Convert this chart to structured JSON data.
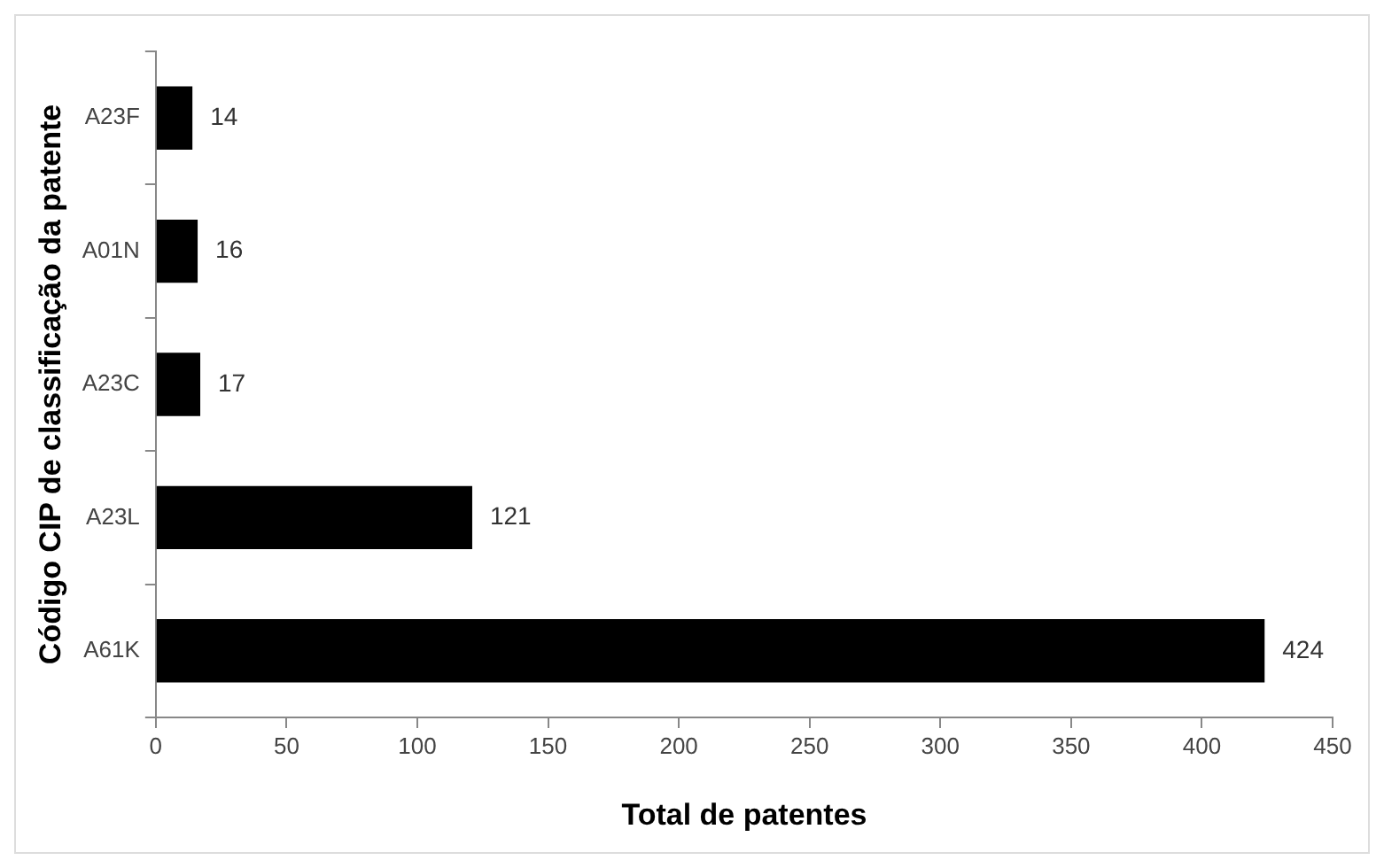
{
  "chart_data": {
    "type": "bar",
    "orientation": "horizontal",
    "xlabel": "Total de patentes",
    "ylabel": "Código CIP de classificação da patente",
    "categories": [
      "A23F",
      "A01N",
      "A23C",
      "A23L",
      "A61K"
    ],
    "values": [
      14,
      16,
      17,
      121,
      424
    ],
    "color": "#000000",
    "xlim": [
      0,
      450
    ],
    "xticks": [
      0,
      50,
      100,
      150,
      200,
      250,
      300,
      350,
      400,
      450
    ],
    "data_labels": true,
    "legend": false
  }
}
